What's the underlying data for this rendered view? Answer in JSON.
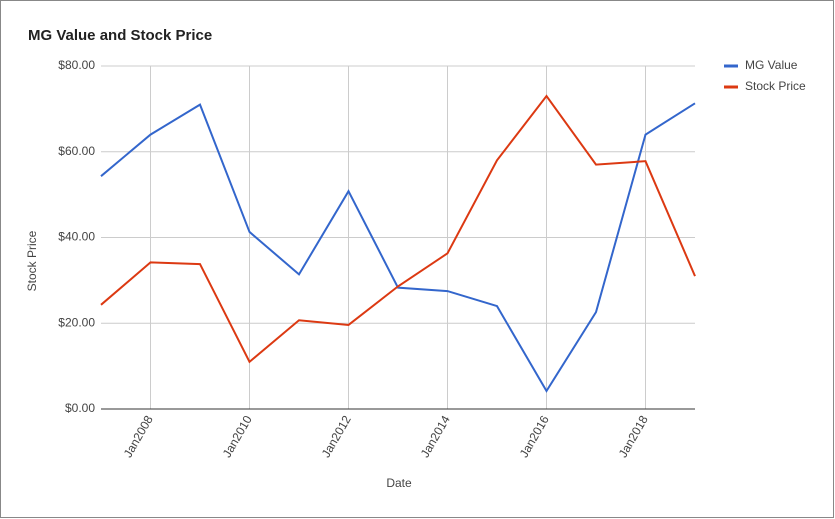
{
  "chart_data": {
    "type": "line",
    "title": "MG Value and Stock Price",
    "x_label": "Date",
    "y_label": "Stock Price",
    "categories": [
      null,
      "Jan2008",
      null,
      "Jan2010",
      null,
      "Jan2012",
      null,
      "Jan2014",
      null,
      "Jan2016",
      null,
      "Jan2018",
      null
    ],
    "series": [
      {
        "name": "MG Value",
        "color": "#3366cc",
        "values": [
          54.3,
          64.0,
          71.0,
          41.3,
          31.4,
          50.8,
          28.3,
          27.5,
          24.0,
          4.2,
          22.6,
          64.0,
          71.3
        ]
      },
      {
        "name": "Stock Price",
        "color": "#dc3912",
        "values": [
          24.3,
          34.2,
          33.8,
          11.0,
          20.7,
          19.6,
          28.6,
          36.3,
          58.0,
          73.0,
          57.0,
          57.8,
          31.0
        ]
      }
    ],
    "ylim": [
      0,
      80
    ],
    "yticks": [
      {
        "value": 0,
        "label": "$0.00"
      },
      {
        "value": 20,
        "label": "$20.00"
      },
      {
        "value": 40,
        "label": "$40.00"
      },
      {
        "value": 60,
        "label": "$60.00"
      },
      {
        "value": 80,
        "label": "$80.00"
      }
    ],
    "grid": true,
    "legend": "right"
  }
}
